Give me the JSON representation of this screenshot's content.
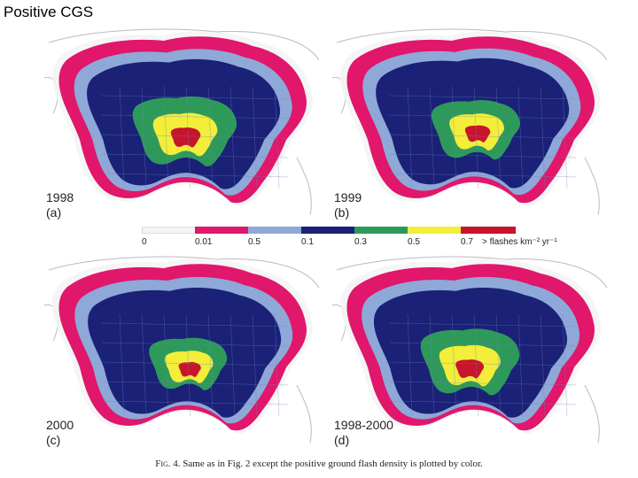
{
  "slide": {
    "title": "Positive CGS"
  },
  "colors": {
    "white": "#f4f4f4",
    "magenta": "#e0176a",
    "lightblue": "#8ea8d8",
    "navy": "#1a2177",
    "green": "#2e9a5a",
    "yellow": "#f2ee3a",
    "red": "#c8142c"
  },
  "panels": [
    {
      "id": "a",
      "year": "1998",
      "letter": "(a)"
    },
    {
      "id": "b",
      "year": "1999",
      "letter": "(b)"
    },
    {
      "id": "c",
      "year": "2000",
      "letter": "(c)"
    },
    {
      "id": "d",
      "year": "1998-2000",
      "letter": "(d)"
    }
  ],
  "legend": {
    "ticks": [
      "0",
      "0.01",
      "0.5",
      "0.1",
      "0.3",
      "0.5",
      "0.7"
    ],
    "units": "> flashes km⁻² yr⁻¹"
  },
  "caption": {
    "fig": "Fig. 4.",
    "text": "Same as in Fig. 2 except the positive ground flash density is plotted by color."
  }
}
